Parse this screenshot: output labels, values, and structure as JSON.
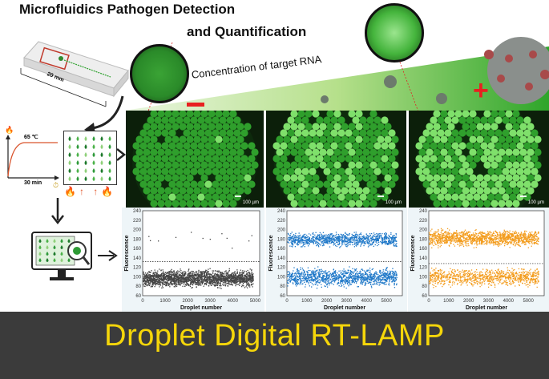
{
  "header": {
    "title_line1": "Microfluidics Pathogen Detection",
    "title_line2": "and Quantification"
  },
  "chip": {
    "dimension_label": "20 mm"
  },
  "amplification": {
    "temperature_label": "65 ℃",
    "time_label": "30 min"
  },
  "concentration": {
    "label": "Concentration of target RNA",
    "low_symbol": "−",
    "high_symbol": "+"
  },
  "micrographs": [
    {
      "scale_label": "100 µm"
    },
    {
      "scale_label": "100 µm"
    },
    {
      "scale_label": "100 µm"
    }
  ],
  "banner": {
    "text": "Droplet Digital RT-LAMP"
  },
  "chart_data": [
    {
      "type": "scatter",
      "xlabel": "Droplet number",
      "ylabel": "Fluorescence",
      "xlim": [
        0,
        5200
      ],
      "ylim": [
        60,
        240
      ],
      "xticks": [
        "0",
        "1000",
        "2000",
        "3000",
        "4000",
        "5000"
      ],
      "yticks": [
        "60",
        "80",
        "100",
        "120",
        "140",
        "160",
        "180",
        "200",
        "220",
        "240"
      ],
      "threshold": 132,
      "color": "#444444",
      "negative_band": [
        75,
        120
      ],
      "positive_band": [
        160,
        200
      ],
      "positive_fraction": 0.003
    },
    {
      "type": "scatter",
      "xlabel": "Droplet number",
      "ylabel": "Fluorescence",
      "xlim": [
        0,
        5800
      ],
      "ylim": [
        60,
        240
      ],
      "xticks": [
        "0",
        "1000",
        "2000",
        "3000",
        "4000",
        "5000"
      ],
      "yticks": [
        "60",
        "80",
        "100",
        "120",
        "140",
        "160",
        "180",
        "200",
        "220",
        "240"
      ],
      "threshold": 132,
      "color": "#1f78c8",
      "negative_band": [
        75,
        125
      ],
      "positive_band": [
        160,
        200
      ],
      "positive_fraction": 0.45
    },
    {
      "type": "scatter",
      "xlabel": "Droplet number",
      "ylabel": "Fluorescence",
      "xlim": [
        0,
        5800
      ],
      "ylim": [
        60,
        240
      ],
      "xticks": [
        "0",
        "1000",
        "2000",
        "3000",
        "4000",
        "5000"
      ],
      "yticks": [
        "60",
        "80",
        "100",
        "120",
        "140",
        "160",
        "180",
        "200",
        "220",
        "240"
      ],
      "threshold": 128,
      "color": "#f39c1d",
      "negative_band": [
        75,
        125
      ],
      "positive_band": [
        160,
        205
      ],
      "positive_fraction": 0.6
    }
  ]
}
